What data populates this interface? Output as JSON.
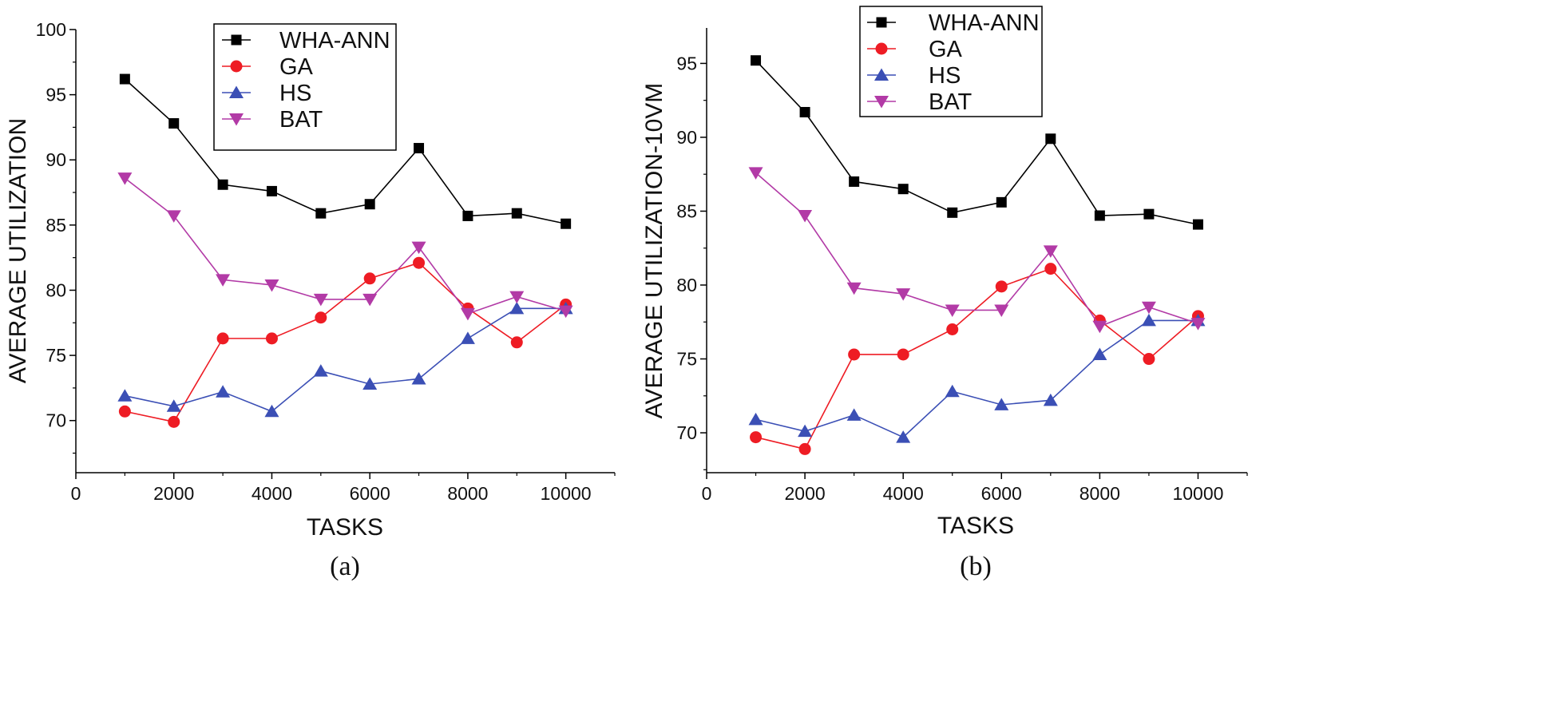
{
  "colors": {
    "WHA-ANN": "#000000",
    "GA": "#ee1c24",
    "HS": "#3b4fb5",
    "BAT": "#b23aa6"
  },
  "chart_data": [
    {
      "type": "line",
      "panel": "a",
      "caption": "(a)",
      "title": "",
      "xlabel": "TASKS",
      "ylabel": "AVERAGE UTILIZATION",
      "xlim": [
        0,
        11000
      ],
      "ylim": [
        66,
        100
      ],
      "xticks": [
        0,
        2000,
        4000,
        6000,
        8000,
        10000
      ],
      "yticks": [
        70,
        75,
        80,
        85,
        90,
        95,
        100
      ],
      "legend_position": "top-center",
      "x": [
        1000,
        2000,
        3000,
        4000,
        5000,
        6000,
        7000,
        8000,
        9000,
        10000
      ],
      "series": [
        {
          "name": "WHA-ANN",
          "marker": "square",
          "values": [
            96.2,
            92.8,
            88.1,
            87.6,
            85.9,
            86.6,
            90.9,
            85.7,
            85.9,
            85.1
          ]
        },
        {
          "name": "GA",
          "marker": "circle",
          "values": [
            70.7,
            69.9,
            76.3,
            76.3,
            77.9,
            80.9,
            82.1,
            78.6,
            76.0,
            78.9
          ]
        },
        {
          "name": "HS",
          "marker": "triangle-up",
          "values": [
            71.9,
            71.1,
            72.2,
            70.7,
            73.8,
            72.8,
            73.2,
            76.3,
            78.6,
            78.6
          ]
        },
        {
          "name": "BAT",
          "marker": "triangle-down",
          "values": [
            88.6,
            85.7,
            80.8,
            80.4,
            79.3,
            79.3,
            83.3,
            78.2,
            79.5,
            78.4
          ]
        }
      ]
    },
    {
      "type": "line",
      "panel": "b",
      "caption": "(b)",
      "title": "",
      "xlabel": "TASKS",
      "ylabel": "AVERAGE UTILIZATION-10VM",
      "xlim": [
        0,
        11000
      ],
      "ylim": [
        67.3,
        97.4
      ],
      "xticks": [
        0,
        2000,
        4000,
        6000,
        8000,
        10000
      ],
      "yticks": [
        70,
        75,
        80,
        85,
        90,
        95
      ],
      "legend_position": "top-center",
      "x": [
        1000,
        2000,
        3000,
        4000,
        5000,
        6000,
        7000,
        8000,
        9000,
        10000
      ],
      "series": [
        {
          "name": "WHA-ANN",
          "marker": "square",
          "values": [
            95.2,
            91.7,
            87.0,
            86.5,
            84.9,
            85.6,
            89.9,
            84.7,
            84.8,
            84.1
          ]
        },
        {
          "name": "GA",
          "marker": "circle",
          "values": [
            69.7,
            68.9,
            75.3,
            75.3,
            77.0,
            79.9,
            81.1,
            77.6,
            75.0,
            77.9
          ]
        },
        {
          "name": "HS",
          "marker": "triangle-up",
          "values": [
            70.9,
            70.1,
            71.2,
            69.7,
            72.8,
            71.9,
            72.2,
            75.3,
            77.6,
            77.6
          ]
        },
        {
          "name": "BAT",
          "marker": "triangle-down",
          "values": [
            87.6,
            84.7,
            79.8,
            79.4,
            78.3,
            78.3,
            82.3,
            77.2,
            78.5,
            77.4
          ]
        }
      ]
    }
  ]
}
